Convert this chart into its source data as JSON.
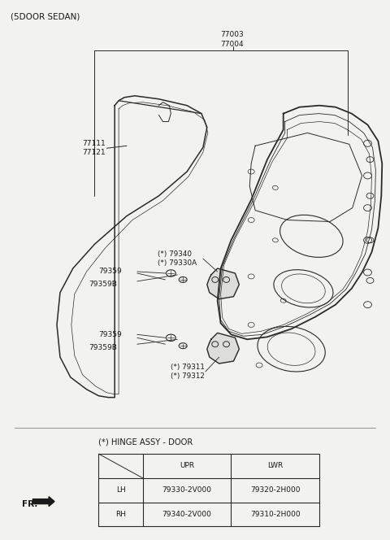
{
  "title": "(5DOOR SEDAN)",
  "bg_color": "#f2f2ee",
  "line_color": "#2a2a2a",
  "text_color": "#1a1a1a",
  "figsize": [
    4.8,
    6.64
  ],
  "dpi": 100,
  "table_title": "(*) HINGE ASSY - DOOR",
  "table_rows": [
    [
      "LH",
      "79330-2V000",
      "79320-2H000"
    ],
    [
      "RH",
      "79340-2V000",
      "79310-2H000"
    ]
  ],
  "label_77003": "77003",
  "label_77004": "77004",
  "label_77111": "77111",
  "label_77121": "77121",
  "label_79340": "(*) 79340",
  "label_79330A": "(*) 79330A",
  "label_79359_u": "79359",
  "label_79359B_u": "79359B",
  "label_79359_l": "79359",
  "label_79359B_l": "79359B",
  "label_79311": "(*) 79311",
  "label_79312": "(*) 79312",
  "label_fr": "FR."
}
